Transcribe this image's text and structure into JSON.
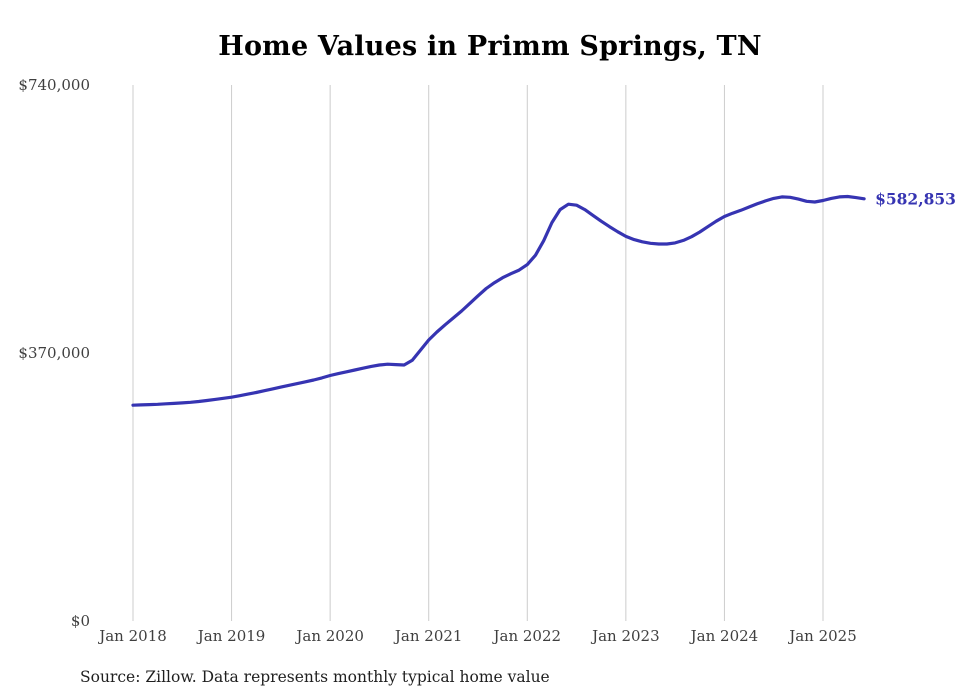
{
  "chart_data": {
    "type": "line",
    "title": "Home Values in Primm Springs, TN",
    "source_note": "Source: Zillow. Data represents monthly typical home value",
    "xlabel": "",
    "ylabel": "",
    "ylim": [
      0,
      740000
    ],
    "y_ticks": [
      {
        "label": "$0",
        "value": 0
      },
      {
        "label": "$370,000",
        "value": 370000
      },
      {
        "label": "$740,000",
        "value": 740000
      }
    ],
    "x_tick_labels": [
      "Jan 2018",
      "Jan 2019",
      "Jan 2020",
      "Jan 2021",
      "Jan 2022",
      "Jan 2023",
      "Jan 2024",
      "Jan 2025"
    ],
    "grid": "vertical-only",
    "legend": "none",
    "line_color": "#3634b2",
    "grid_color": "#cccccc",
    "end_label": "$582,853",
    "series": [
      {
        "name": "Typical home value",
        "unit": "USD",
        "frequency": "monthly",
        "start": "Jan 2018",
        "end": "Jun 2025",
        "values": [
          298000,
          298300,
          298700,
          299200,
          299800,
          300400,
          301100,
          302000,
          303100,
          304400,
          305900,
          307400,
          309000,
          311000,
          313200,
          315500,
          317900,
          320400,
          322900,
          325400,
          327800,
          330200,
          332700,
          335600,
          339000,
          341500,
          344000,
          346500,
          349000,
          351500,
          353500,
          354500,
          354000,
          353500,
          360000,
          374000,
          388000,
          399000,
          409000,
          418500,
          428000,
          438500,
          449000,
          459000,
          467000,
          474000,
          479500,
          484500,
          492000,
          505000,
          525000,
          550000,
          568000,
          575500,
          574000,
          568000,
          560000,
          552000,
          544500,
          537500,
          531000,
          526500,
          523500,
          521500,
          520500,
          520500,
          522000,
          525500,
          530500,
          537000,
          544500,
          552000,
          558500,
          563000,
          567000,
          571500,
          576000,
          580000,
          583500,
          585500,
          585000,
          582500,
          579500,
          578500,
          580500,
          583500,
          585500,
          586000,
          584500,
          582853
        ]
      }
    ]
  }
}
